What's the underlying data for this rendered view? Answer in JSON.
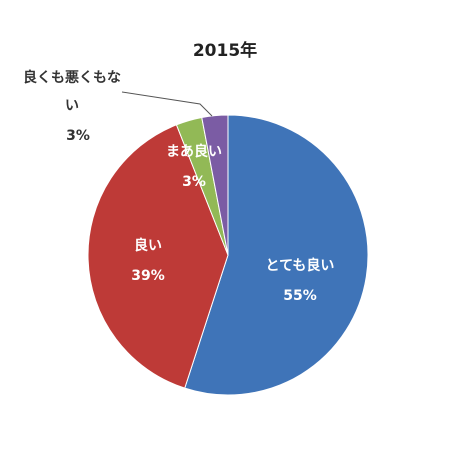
{
  "chart_data": {
    "type": "pie",
    "title": "2015年",
    "categories": [
      "とても良い",
      "良い",
      "まあ良い",
      "良くも悪くもない"
    ],
    "values": [
      55,
      39,
      3,
      3
    ],
    "value_labels": [
      "55%",
      "39%",
      "3%",
      "3%"
    ],
    "colors": [
      "#3f74b8",
      "#be3a37",
      "#92b956",
      "#7b5ca4"
    ]
  }
}
